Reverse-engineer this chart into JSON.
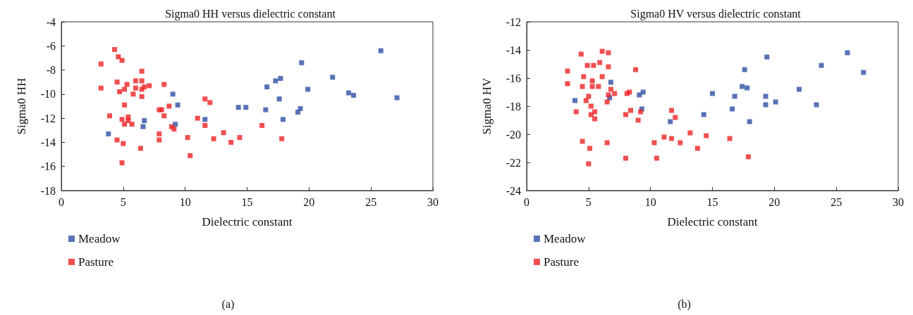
{
  "chart_data": [
    {
      "type": "scatter",
      "title": "Sigma0 HH versus dielectric constant",
      "xlabel": "Dielectric constant",
      "ylabel": "Sigma0 HH",
      "xlim": [
        0,
        30
      ],
      "xticks": [
        0,
        5,
        10,
        15,
        20,
        25,
        30
      ],
      "ylim": [
        -18,
        -4
      ],
      "yticks": [
        -18,
        -16,
        -14,
        -12,
        -10,
        -8,
        -6,
        -4
      ],
      "grid": false,
      "legend": "bottom left",
      "marker": "square",
      "annotations": [
        "(a)"
      ],
      "series": [
        {
          "name": "Meadow",
          "color": "#2e4fa3",
          "x": [
            3.8,
            6.6,
            6.7,
            9.0,
            9.2,
            9.4,
            11.6,
            14.3,
            14.9,
            16.5,
            16.6,
            17.3,
            17.6,
            17.7,
            17.9,
            19.1,
            19.3,
            19.4,
            19.9,
            21.9,
            23.2,
            23.6,
            25.8,
            27.1
          ],
          "values": [
            -13.3,
            -12.7,
            -12.2,
            -10.0,
            -12.5,
            -10.9,
            -12.1,
            -11.1,
            -11.1,
            -11.3,
            -9.4,
            -8.9,
            -10.4,
            -8.7,
            -12.1,
            -11.5,
            -11.2,
            -7.4,
            -9.6,
            -8.6,
            -9.9,
            -10.1,
            -6.4,
            -10.3
          ]
        },
        {
          "name": "Pasture",
          "color": "#ee2224",
          "x": [
            3.2,
            3.2,
            3.9,
            4.3,
            4.6,
            4.9,
            4.5,
            4.7,
            5.1,
            5.3,
            5.1,
            4.9,
            5.1,
            5.4,
            5.4,
            5.7,
            4.5,
            5.0,
            4.9,
            5.8,
            6.0,
            6.0,
            6.5,
            6.5,
            6.5,
            6.5,
            6.7,
            7.1,
            6.4,
            8.3,
            7.9,
            8.1,
            8.3,
            7.9,
            7.9,
            8.7,
            8.9,
            9.1,
            10.2,
            10.4,
            11.0,
            11.6,
            12.0,
            11.6,
            12.3,
            13.1,
            13.7,
            14.4,
            16.2,
            17.8
          ],
          "values": [
            -7.5,
            -9.5,
            -11.8,
            -6.3,
            -6.9,
            -7.2,
            -9.0,
            -9.8,
            -9.6,
            -9.2,
            -10.9,
            -12.1,
            -12.5,
            -11.9,
            -12.2,
            -12.5,
            -13.8,
            -14.1,
            -15.7,
            -10.0,
            -8.9,
            -9.5,
            -8.1,
            -8.9,
            -9.6,
            -10.2,
            -9.4,
            -9.3,
            -14.5,
            -9.2,
            -11.3,
            -11.3,
            -11.8,
            -13.3,
            -13.8,
            -11.0,
            -12.7,
            -12.9,
            -13.6,
            -15.1,
            -12.0,
            -10.4,
            -10.7,
            -12.6,
            -13.7,
            -13.2,
            -14.0,
            -13.6,
            -12.6,
            -13.7
          ]
        }
      ]
    },
    {
      "type": "scatter",
      "title": "Sigma0 HV versus dielectric constant",
      "xlabel": "Dielectric constant",
      "ylabel": "Sigma0 HV",
      "xlim": [
        0,
        30
      ],
      "xticks": [
        0,
        5,
        10,
        15,
        20,
        25,
        30
      ],
      "ylim": [
        -24,
        -12
      ],
      "yticks": [
        -24,
        -22,
        -20,
        -18,
        -16,
        -14,
        -12
      ],
      "grid": false,
      "legend": "bottom left",
      "marker": "square",
      "annotations": [
        "(b)"
      ],
      "series": [
        {
          "name": "Meadow",
          "color": "#2e4fa3",
          "x": [
            3.9,
            6.8,
            6.7,
            9.1,
            9.4,
            9.3,
            11.6,
            14.3,
            15.0,
            16.6,
            16.8,
            17.4,
            17.8,
            17.6,
            18.0,
            19.3,
            19.3,
            19.4,
            20.1,
            22.0,
            23.4,
            23.8,
            25.9,
            27.2
          ],
          "values": [
            -17.6,
            -16.3,
            -17.4,
            -17.2,
            -17.0,
            -18.2,
            -19.1,
            -18.6,
            -17.1,
            -18.2,
            -17.3,
            -16.6,
            -16.7,
            -15.4,
            -19.1,
            -17.9,
            -17.3,
            -14.5,
            -17.7,
            -16.8,
            -17.9,
            -15.1,
            -14.2,
            -15.6
          ]
        },
        {
          "name": "Pasture",
          "color": "#ee2224",
          "x": [
            3.3,
            3.3,
            4.0,
            4.4,
            4.6,
            4.5,
            4.9,
            5.4,
            5.3,
            5.3,
            5.0,
            4.8,
            5.2,
            5.2,
            5.5,
            5.5,
            4.5,
            5.1,
            5.0,
            5.9,
            6.1,
            6.6,
            6.6,
            6.1,
            5.8,
            6.8,
            6.6,
            6.5,
            7.1,
            6.5,
            8.1,
            8.3,
            8.8,
            8.4,
            8.0,
            9.2,
            9.0,
            8.0,
            10.3,
            10.5,
            11.1,
            11.7,
            11.7,
            12.0,
            12.4,
            13.2,
            13.8,
            14.5,
            16.4,
            17.9
          ],
          "values": [
            -15.5,
            -16.4,
            -18.4,
            -14.3,
            -15.9,
            -16.6,
            -15.1,
            -15.1,
            -16.2,
            -16.6,
            -17.3,
            -17.6,
            -18.0,
            -18.6,
            -18.4,
            -18.9,
            -20.5,
            -21.0,
            -22.1,
            -14.9,
            -14.1,
            -14.2,
            -15.2,
            -15.9,
            -16.6,
            -16.8,
            -17.2,
            -17.7,
            -17.1,
            -20.6,
            -17.1,
            -17.0,
            -15.4,
            -18.3,
            -18.6,
            -18.4,
            -19.0,
            -21.7,
            -20.6,
            -21.7,
            -20.2,
            -20.3,
            -18.3,
            -18.8,
            -20.6,
            -19.9,
            -21.0,
            -20.1,
            -20.3,
            -21.6
          ]
        }
      ]
    }
  ]
}
